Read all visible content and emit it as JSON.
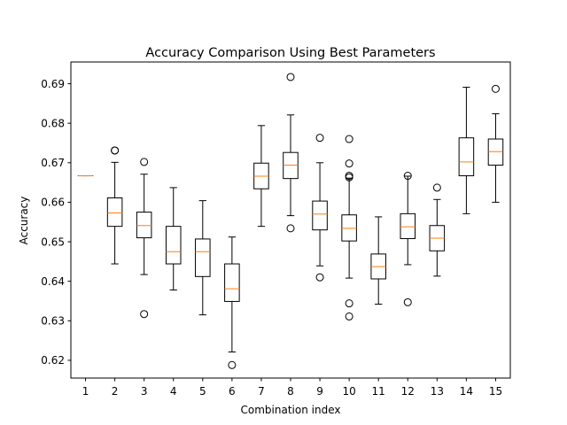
{
  "chart_data": {
    "type": "box",
    "title": "Accuracy Comparison Using Best Parameters",
    "xlabel": "Combination index",
    "ylabel": "Accuracy",
    "ylim": [
      0.6155,
      0.6955
    ],
    "yticks": [
      0.62,
      0.63,
      0.64,
      0.65,
      0.66,
      0.67,
      0.68,
      0.69
    ],
    "ytick_labels": [
      "0.62",
      "0.63",
      "0.64",
      "0.65",
      "0.66",
      "0.67",
      "0.68",
      "0.69"
    ],
    "grid": false,
    "colors": {
      "box": "#000000",
      "median": "#ff7f0e",
      "flier": "#000000"
    },
    "series": [
      {
        "label": "1",
        "whislo": 0.6667,
        "q1": 0.6667,
        "med": 0.6667,
        "q3": 0.6667,
        "whishi": 0.6667,
        "fliers": []
      },
      {
        "label": "2",
        "whislo": 0.6444,
        "q1": 0.6539,
        "med": 0.6573,
        "q3": 0.6611,
        "whishi": 0.6701,
        "fliers": [
          0.6731,
          0.6731
        ]
      },
      {
        "label": "3",
        "whislo": 0.6417,
        "q1": 0.651,
        "med": 0.6541,
        "q3": 0.6575,
        "whishi": 0.6671,
        "fliers": [
          0.6702,
          0.6317
        ]
      },
      {
        "label": "4",
        "whislo": 0.6378,
        "q1": 0.6444,
        "med": 0.6475,
        "q3": 0.6539,
        "whishi": 0.6637,
        "fliers": []
      },
      {
        "label": "5",
        "whislo": 0.6315,
        "q1": 0.6412,
        "med": 0.6475,
        "q3": 0.6507,
        "whishi": 0.6604,
        "fliers": []
      },
      {
        "label": "6",
        "whislo": 0.6221,
        "q1": 0.6349,
        "med": 0.6381,
        "q3": 0.6444,
        "whishi": 0.6512,
        "fliers": [
          0.6188
        ]
      },
      {
        "label": "7",
        "whislo": 0.6539,
        "q1": 0.6634,
        "med": 0.6666,
        "q3": 0.6699,
        "whishi": 0.6794,
        "fliers": []
      },
      {
        "label": "8",
        "whislo": 0.6566,
        "q1": 0.666,
        "med": 0.6694,
        "q3": 0.6726,
        "whishi": 0.6821,
        "fliers": [
          0.6917,
          0.6534
        ]
      },
      {
        "label": "9",
        "whislo": 0.6439,
        "q1": 0.653,
        "med": 0.657,
        "q3": 0.6603,
        "whishi": 0.67,
        "fliers": [
          0.6763,
          0.641
        ]
      },
      {
        "label": "10",
        "whislo": 0.6408,
        "q1": 0.6502,
        "med": 0.6534,
        "q3": 0.6568,
        "whishi": 0.6661,
        "fliers": [
          0.676,
          0.6698,
          0.6667,
          0.6663,
          0.6344,
          0.6311
        ]
      },
      {
        "label": "11",
        "whislo": 0.6342,
        "q1": 0.6406,
        "med": 0.6437,
        "q3": 0.6469,
        "whishi": 0.6563,
        "fliers": []
      },
      {
        "label": "12",
        "whislo": 0.6442,
        "q1": 0.6508,
        "med": 0.6538,
        "q3": 0.6571,
        "whishi": 0.6666,
        "fliers": [
          0.6667,
          0.6347
        ]
      },
      {
        "label": "13",
        "whislo": 0.6413,
        "q1": 0.6477,
        "med": 0.6509,
        "q3": 0.6541,
        "whishi": 0.6607,
        "fliers": [
          0.6637
        ]
      },
      {
        "label": "14",
        "whislo": 0.6571,
        "q1": 0.6667,
        "med": 0.6702,
        "q3": 0.6763,
        "whishi": 0.6891,
        "fliers": []
      },
      {
        "label": "15",
        "whislo": 0.66,
        "q1": 0.6694,
        "med": 0.6728,
        "q3": 0.676,
        "whishi": 0.6824,
        "fliers": [
          0.6887
        ]
      }
    ]
  }
}
